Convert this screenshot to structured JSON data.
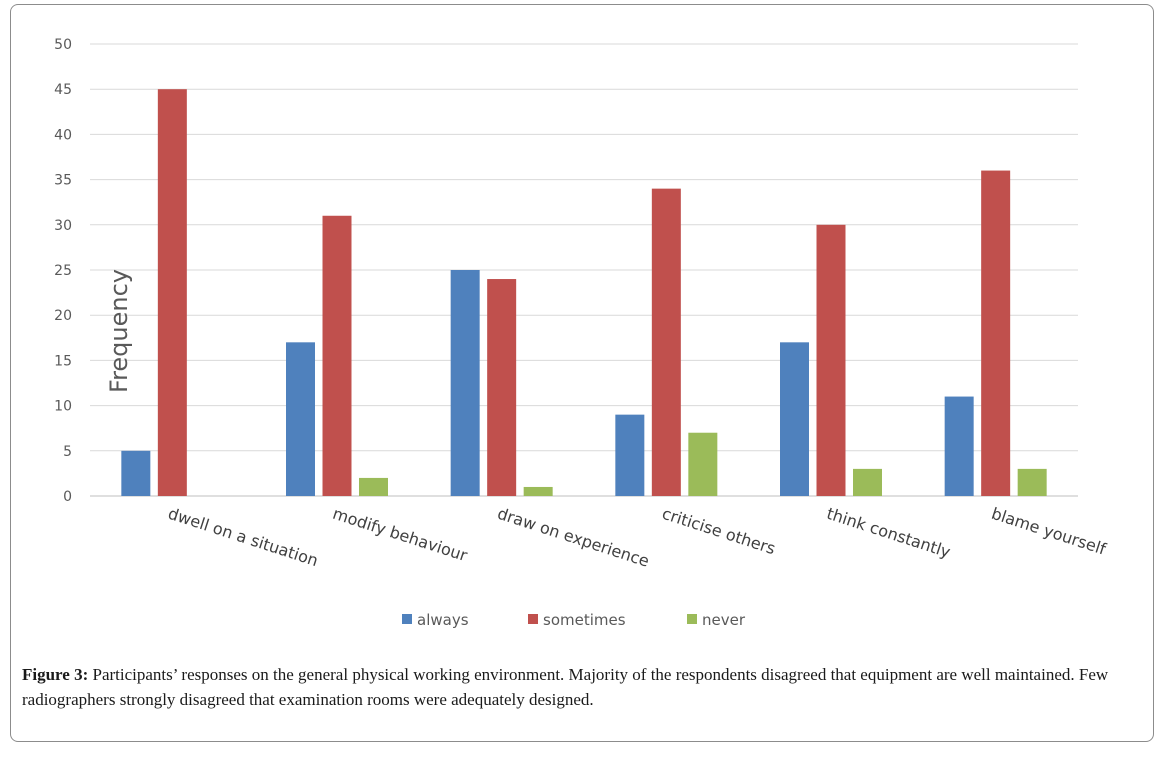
{
  "chart_data": {
    "type": "bar",
    "title": "",
    "xlabel": "",
    "ylabel": "Frequency",
    "ylim": [
      0,
      50
    ],
    "yticks": [
      0,
      5,
      10,
      15,
      20,
      25,
      30,
      35,
      40,
      45,
      50
    ],
    "categories": [
      "dwell on a situation",
      "modify behaviour",
      "draw on experience",
      "criticise others",
      "think constantly",
      "blame yourself"
    ],
    "series": [
      {
        "name": "always",
        "color": "#4f81bd",
        "values": [
          5,
          17,
          25,
          9,
          17,
          11
        ]
      },
      {
        "name": "sometimes",
        "color": "#c0504d",
        "values": [
          45,
          31,
          24,
          34,
          30,
          36
        ]
      },
      {
        "name": "never",
        "color": "#9bbb59",
        "values": [
          0,
          2,
          1,
          7,
          3,
          3
        ]
      }
    ],
    "legend_position": "bottom"
  },
  "caption": {
    "label": "Figure 3:",
    "text": " Participants’ responses on the general physical working environment. Majority of the respondents disagreed that equipment are well maintained. Few radiographers strongly disagreed that examination rooms were adequately designed."
  }
}
